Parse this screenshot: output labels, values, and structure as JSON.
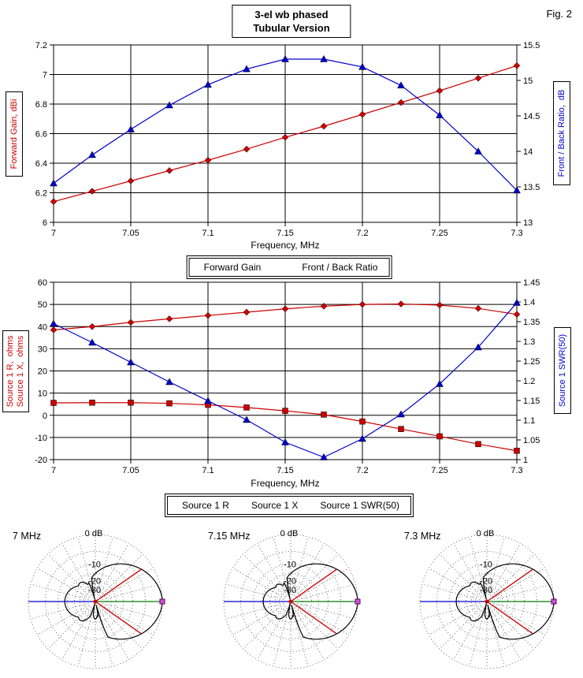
{
  "page": {
    "fig_label": "Fig. 2",
    "title_line1": "3-el wb phased",
    "title_line2": "Tubular Version"
  },
  "colors": {
    "series_red": "#cc0000",
    "series_blue": "#0000cc",
    "cursor_green": "#008000",
    "cursor_blue": "#0000cc",
    "beamwidth_red": "#cc0000",
    "cursor_marker_magenta": "#cc55cc",
    "grid_black": "#000000",
    "polar_grid_gray": "#444444"
  },
  "chart_data": [
    {
      "type": "line",
      "xlabel": "Frequency, MHz",
      "x_range": [
        7,
        7.3
      ],
      "x_ticks": [
        "7",
        "7.05",
        "7.1",
        "7.15",
        "7.2",
        "7.25",
        "7.3"
      ],
      "x": [
        7,
        7.025,
        7.05,
        7.075,
        7.1,
        7.125,
        7.15,
        7.175,
        7.2,
        7.225,
        7.25,
        7.275,
        7.3
      ],
      "left_axis": {
        "label": "Forward Gain, dBi",
        "range": [
          6,
          7.2
        ],
        "ticks": [
          "6",
          "6.2",
          "6.4",
          "6.6",
          "6.8",
          "7",
          "7.2"
        ]
      },
      "right_axis": {
        "label": "Front / Back Ratio,  dB",
        "range": [
          13,
          15.5
        ],
        "ticks": [
          "13",
          "13.5",
          "14",
          "14.5",
          "15",
          "15.5"
        ]
      },
      "series": [
        {
          "name": "Forward Gain",
          "axis": "left",
          "color": "#cc0000",
          "marker": "diamond",
          "values": [
            6.14,
            6.21,
            6.28,
            6.35,
            6.42,
            6.495,
            6.575,
            6.65,
            6.73,
            6.81,
            6.89,
            6.975,
            7.06
          ]
        },
        {
          "name": "Front / Back Ratio",
          "axis": "right",
          "color": "#0000cc",
          "marker": "triangle",
          "values": [
            13.55,
            13.95,
            14.31,
            14.65,
            14.94,
            15.16,
            15.3,
            15.3,
            15.19,
            14.93,
            14.51,
            14.0,
            13.45
          ]
        }
      ]
    },
    {
      "type": "line",
      "xlabel": "Frequency, MHz",
      "x_range": [
        7,
        7.3
      ],
      "x_ticks": [
        "7",
        "7.05",
        "7.1",
        "7.15",
        "7.2",
        "7.25",
        "7.3"
      ],
      "x": [
        7,
        7.025,
        7.05,
        7.075,
        7.1,
        7.125,
        7.15,
        7.175,
        7.2,
        7.225,
        7.25,
        7.275,
        7.3
      ],
      "left_axis": {
        "label": "Source 1 R,  ohms\nSource 1 X,  ohms",
        "range": [
          -20,
          60
        ],
        "ticks": [
          "-20",
          "-10",
          "0",
          "10",
          "20",
          "30",
          "40",
          "50",
          "60"
        ]
      },
      "right_axis": {
        "label": "Source 1 SWR(50)",
        "range": [
          1,
          1.45
        ],
        "ticks": [
          "1",
          "1.05",
          "1.1",
          "1.15",
          "1.2",
          "1.25",
          "1.3",
          "1.35",
          "1.4",
          "1.45"
        ]
      },
      "series": [
        {
          "name": "Source 1 R",
          "axis": "left",
          "color": "#cc0000",
          "marker": "diamond",
          "values": [
            38.5,
            40.0,
            41.9,
            43.5,
            45.0,
            46.5,
            48.0,
            49.2,
            50.0,
            50.2,
            49.7,
            48.2,
            45.5
          ]
        },
        {
          "name": "Source 1 X",
          "axis": "left",
          "color": "#cc0000",
          "marker": "square",
          "values": [
            5.6,
            5.7,
            5.7,
            5.4,
            4.7,
            3.5,
            2.0,
            0.3,
            -2.8,
            -6.2,
            -9.5,
            -13.0,
            -16.0
          ]
        },
        {
          "name": "Source 1 SWR(50)",
          "axis": "right",
          "color": "#0000cc",
          "marker": "triangle",
          "values": [
            1.345,
            1.297,
            1.247,
            1.197,
            1.149,
            1.101,
            1.044,
            1.006,
            1.053,
            1.115,
            1.192,
            1.285,
            1.398
          ]
        }
      ]
    },
    {
      "type": "polar",
      "zero_label": "0 dB",
      "ring_labels": [
        "-10",
        "-20",
        "-30"
      ],
      "ring_dbs": [
        0,
        -5,
        -10,
        -15,
        -20,
        -25,
        -30
      ],
      "outer_ring_db": 0,
      "plots": [
        {
          "label": "7 MHz",
          "front_back_db": 13.5,
          "beamwidth_deg": 70
        },
        {
          "label": "7.15 MHz",
          "front_back_db": 15.3,
          "beamwidth_deg": 70
        },
        {
          "label": "7.3 MHz",
          "front_back_db": 13.4,
          "beamwidth_deg": 70
        }
      ]
    }
  ]
}
